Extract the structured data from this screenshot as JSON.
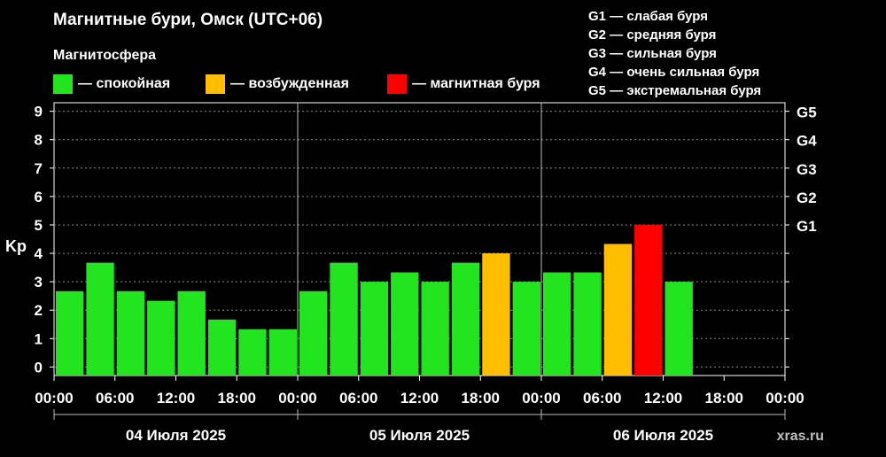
{
  "chart_data": {
    "type": "bar",
    "title": "Магнитные бури, Омск (UTC+06)",
    "subtitle": "Магнитосфера",
    "ylabel": "Kp",
    "ylim": [
      -0.3,
      9.3
    ],
    "y_ticks": [
      0,
      1,
      2,
      3,
      4,
      5,
      6,
      7,
      8,
      9
    ],
    "right_ticks": [
      {
        "value": 5,
        "label": "G1"
      },
      {
        "value": 6,
        "label": "G2"
      },
      {
        "value": 7,
        "label": "G3"
      },
      {
        "value": 8,
        "label": "G4"
      },
      {
        "value": 9,
        "label": "G5"
      }
    ],
    "grid": true,
    "x_tick_labels": [
      "00:00",
      "06:00",
      "12:00",
      "18:00",
      "00:00",
      "06:00",
      "12:00",
      "18:00",
      "00:00",
      "06:00",
      "12:00",
      "18:00",
      "00:00"
    ],
    "days": [
      "04 Июля 2025",
      "05 Июля 2025",
      "06 Июля 2025"
    ],
    "bars_per_day": 8,
    "colors": {
      "quiet": "#22e51f",
      "excited": "#ffbf00",
      "storm": "#ff0000"
    },
    "values": [
      2.67,
      3.67,
      2.67,
      2.33,
      2.67,
      1.67,
      1.33,
      1.33,
      2.67,
      3.67,
      3.0,
      3.33,
      3.0,
      3.67,
      4.0,
      3.0,
      3.33,
      3.33,
      4.33,
      5.0,
      3.0
    ],
    "status": [
      "quiet",
      "quiet",
      "quiet",
      "quiet",
      "quiet",
      "quiet",
      "quiet",
      "quiet",
      "quiet",
      "quiet",
      "quiet",
      "quiet",
      "quiet",
      "quiet",
      "excited",
      "quiet",
      "quiet",
      "quiet",
      "excited",
      "storm",
      "quiet"
    ]
  },
  "legend": [
    {
      "label": "— спокойная",
      "color": "#22e51f"
    },
    {
      "label": "— возбужденная",
      "color": "#ffbf00"
    },
    {
      "label": "— магнитная буря",
      "color": "#ff0000"
    }
  ],
  "g_legend": [
    "G1 — слабая буря",
    "G2 — средняя буря",
    "G3 — сильная буря",
    "G4 — очень сильная буря",
    "G5 — экстремальная буря"
  ],
  "watermark": "xras.ru"
}
